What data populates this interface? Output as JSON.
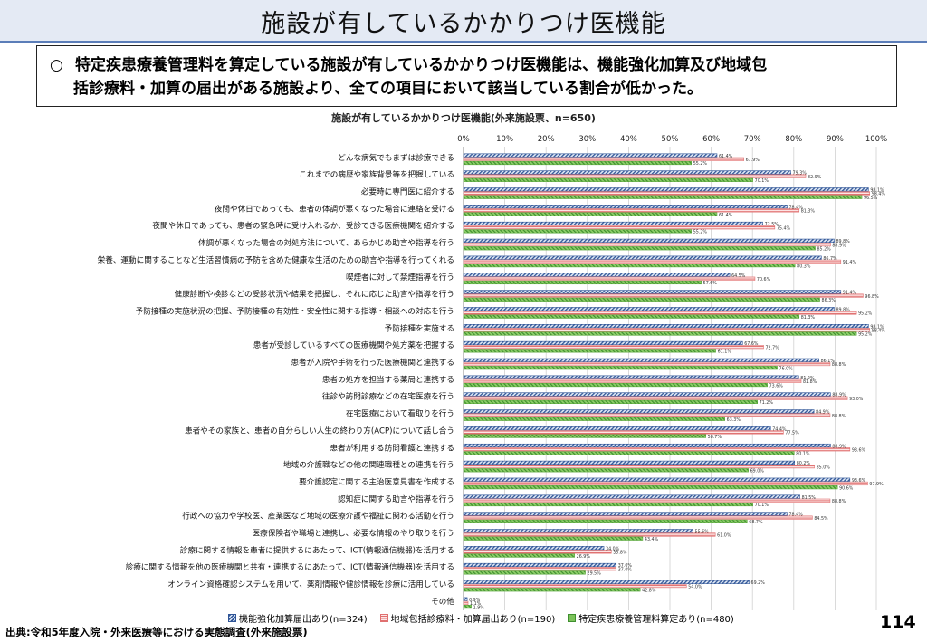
{
  "page": {
    "title": "施設が有しているかかりつけ医機能",
    "summary_bullet": "○",
    "summary_line1": "特定疾患療養管理料を算定している施設が有しているかかりつけ医機能は、機能強化加算及び地域包",
    "summary_line2": "括診療料・加算の届出がある施設より、全ての項目において該当している割合が低かった。",
    "source": "出典:令和5年度入院・外来医療等における実態調査(外来施設票)",
    "page_number": "114"
  },
  "legend_items": [
    "機能強化加算届出あり(n=324)",
    "地域包括診療料・加算届出あり(n=190)",
    "特定疾患療養管理料算定あり(n=480)"
  ],
  "colors": {
    "series_a": "#2f5597",
    "series_b": "#e07070",
    "series_c": "#5aa83c",
    "title_bg": "#e4eaf4"
  },
  "chart_data": {
    "type": "bar",
    "orientation": "horizontal",
    "title": "施設が有しているかかりつけ医機能(外来施設票、n=650)",
    "xlim": [
      0,
      100
    ],
    "x_ticks": [
      "0%",
      "10%",
      "20%",
      "30%",
      "40%",
      "50%",
      "60%",
      "70%",
      "80%",
      "90%",
      "100%"
    ],
    "categories": [
      "どんな病気でもまずは診療できる",
      "これまでの病歴や家族背景等を把握している",
      "必要時に専門医に紹介する",
      "夜間や休日であっても、患者の体調が悪くなった場合に連絡を受ける",
      "夜間や休日であっても、患者の緊急時に受け入れるか、受診できる医療機関を紹介する",
      "体調が悪くなった場合の対処方法について、あらかじめ助言や指導を行う",
      "栄養、運動に関することなど生活習慣病の予防を含めた健康な生活のための助言や指導を行ってくれる",
      "喫煙者に対して禁煙指導を行う",
      "健康診断や検診などの受診状況や結果を把握し、それに応じた助言や指導を行う",
      "予防接種の実施状況の把握、予防接種の有効性・安全性に関する指導・相談への対応を行う",
      "予防接種を実施する",
      "患者が受診しているすべての医療機関や処方薬を把握する",
      "患者が入院や手術を行った医療機関と連携する",
      "患者の処方を担当する薬局と連携する",
      "往診や訪問診療などの在宅医療を行う",
      "在宅医療において看取りを行う",
      "患者やその家族と、患者の自分らしい人生の終わり方(ACP)について話し合う",
      "患者が利用する訪問看護と連携する",
      "地域の介護職などの他の関連職種との連携を行う",
      "要介護認定に関する主治医意見書を作成する",
      "認知症に関する助言や指導を行う",
      "行政への協力や学校医、産業医など地域の医療介護や福祉に関わる活動を行う",
      "医療保険者や職場と連携し、必要な情報のやり取りを行う",
      "診療に関する情報を患者に提供するにあたって、ICT(情報通信機器)を活用する",
      "診療に関する情報を他の医療機関と共有・連携するにあたって、ICT(情報通信機器)を活用する",
      "オンライン資格確認システムを用いて、薬剤情報や健診情報を診療に活用している",
      "その他"
    ],
    "series": [
      {
        "name": "機能強化加算届出あり(n=324)",
        "values": [
          61.4,
          79.3,
          98.1,
          78.4,
          72.5,
          89.8,
          86.7,
          64.5,
          91.4,
          89.8,
          98.1,
          67.6,
          86.1,
          81.2,
          88.9,
          84.9,
          74.4,
          88.9,
          80.2,
          93.6,
          81.5,
          78.4,
          55.6,
          34.0,
          37.0,
          69.2,
          0.9
        ]
      },
      {
        "name": "地域包括診療料・加算届出あり(n=190)",
        "values": [
          67.9,
          82.9,
          98.4,
          81.3,
          75.4,
          88.9,
          91.4,
          70.6,
          96.8,
          95.2,
          98.4,
          72.7,
          88.8,
          81.8,
          93.0,
          88.8,
          77.5,
          93.6,
          85.0,
          97.9,
          88.8,
          84.5,
          61.0,
          35.8,
          37.0,
          54.0,
          1.1
        ]
      },
      {
        "name": "特定疾患療養管理料算定あり(n=480)",
        "values": [
          55.2,
          70.1,
          96.5,
          61.4,
          55.2,
          85.2,
          80.3,
          57.6,
          86.3,
          81.3,
          95.2,
          61.1,
          76.0,
          73.6,
          71.2,
          63.3,
          58.7,
          80.1,
          69.0,
          90.6,
          70.1,
          68.7,
          43.4,
          26.9,
          29.5,
          42.8,
          1.9
        ]
      }
    ],
    "data_labels": [
      [
        "61.4%",
        "79.3%",
        "98.1%",
        "78.4%",
        "72.5%",
        "89.8%",
        "86.7%",
        "64.5%",
        "91.4%",
        "89.8%",
        "98.1%",
        "67.6%",
        "86.1%",
        "81.2%",
        "88.9%",
        "84.9%",
        "74.4%",
        "88.9%",
        "80.2%",
        "93.6%",
        "81.5%",
        "78.4%",
        "55.6%",
        "34.0%",
        "37.0%",
        "69.2%",
        "0.9%"
      ],
      [
        "67.9%",
        "82.9%",
        "98.4%",
        "81.3%",
        "75.4%",
        "88.9%",
        "91.4%",
        "70.6%",
        "96.8%",
        "95.2%",
        "98.4%",
        "72.7%",
        "88.8%",
        "81.8%",
        "93.0%",
        "88.8%",
        "77.5%",
        "93.6%",
        "85.0%",
        "97.9%",
        "88.8%",
        "84.5%",
        "61.0%",
        "35.8%",
        "37.0%",
        "54.0%",
        "1.1%"
      ],
      [
        "55.2%",
        "70.1%",
        "96.5%",
        "61.4%",
        "55.2%",
        "85.2%",
        "80.3%",
        "57.6%",
        "86.3%",
        "81.3%",
        "95.2%",
        "61.1%",
        "76.0%",
        "73.6%",
        "71.2%",
        "63.3%",
        "58.7%",
        "80.1%",
        "69.0%",
        "90.6%",
        "70.1%",
        "68.7%",
        "43.4%",
        "26.9%",
        "29.5%",
        "42.8%",
        "1.9%"
      ]
    ],
    "grid": true,
    "legend_position": "bottom"
  }
}
